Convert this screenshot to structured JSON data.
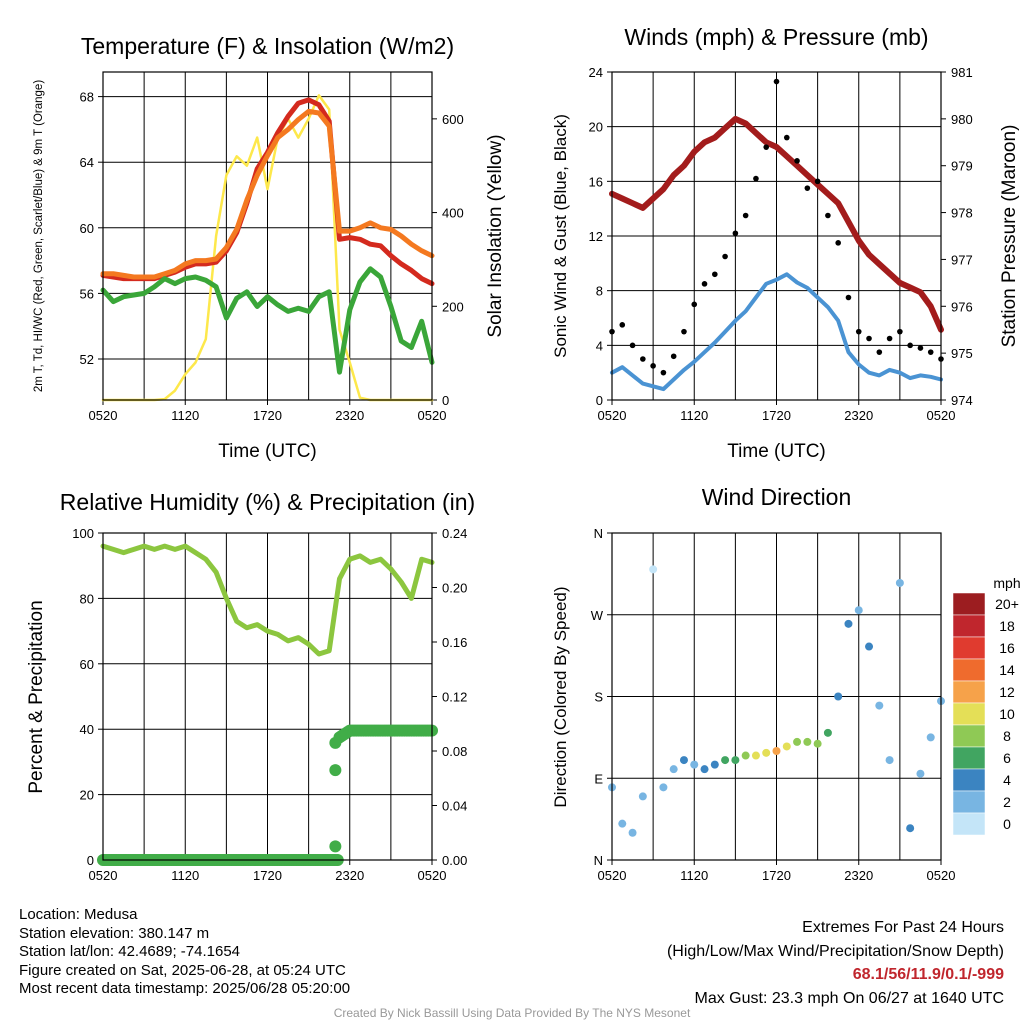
{
  "chart_data": [
    {
      "type": "line",
      "title": "Temperature (F) & Insolation (W/m2)",
      "xlabel": "Time (UTC)",
      "ylabel_left": "2m T, Td, HI/WC (Red, Green, Scarlet/Blue) & 9m T (Orange)",
      "ylabel_right": "Solar Insolation (Yellow)",
      "x_ticks": [
        "0520",
        "1120",
        "1720",
        "2320",
        "0520"
      ],
      "ylim_left": [
        49.5,
        69.5
      ],
      "yticks_left": [
        52,
        56,
        60,
        64,
        68
      ],
      "ylim_right": [
        0,
        700
      ],
      "yticks_right": [
        0,
        200,
        400,
        600
      ],
      "series": [
        {
          "name": "2m T",
          "color": "#d42a1e",
          "axis": "left",
          "values": [
            57.1,
            57.0,
            56.9,
            56.9,
            56.9,
            56.9,
            57.1,
            57.3,
            57.6,
            57.8,
            57.8,
            57.9,
            58.6,
            59.7,
            61.5,
            63.6,
            64.6,
            65.8,
            66.8,
            67.6,
            67.8,
            67.5,
            66.5,
            59.3,
            59.4,
            59.3,
            59.0,
            58.9,
            58.3,
            57.8,
            57.4,
            56.9,
            56.6
          ]
        },
        {
          "name": "9m T",
          "color": "#f47920",
          "axis": "left",
          "values": [
            57.2,
            57.2,
            57.1,
            57.0,
            57.0,
            57.0,
            57.2,
            57.4,
            57.8,
            58.0,
            58.0,
            58.1,
            58.8,
            59.9,
            61.7,
            63.2,
            64.4,
            65.5,
            66.0,
            66.6,
            67.1,
            67.0,
            66.2,
            59.8,
            59.8,
            60.0,
            60.3,
            60.0,
            59.9,
            59.5,
            59.0,
            58.6,
            58.3
          ]
        },
        {
          "name": "2m Td",
          "color": "#3aa639",
          "axis": "left",
          "values": [
            56.2,
            55.5,
            55.8,
            55.9,
            56.0,
            56.4,
            56.9,
            56.6,
            56.9,
            57.0,
            56.8,
            56.4,
            54.5,
            55.7,
            56.1,
            55.2,
            55.8,
            55.3,
            54.9,
            55.1,
            54.9,
            55.8,
            56.1,
            51.2,
            55.0,
            56.7,
            57.5,
            57.0,
            55.2,
            53.1,
            52.7,
            54.3,
            51.8
          ]
        },
        {
          "name": "Solar Insolation",
          "color": "#fde84b",
          "axis": "right",
          "values": [
            0,
            0,
            0,
            0,
            0,
            0,
            2,
            20,
            55,
            80,
            130,
            350,
            480,
            520,
            500,
            560,
            450,
            560,
            600,
            560,
            600,
            650,
            620,
            150,
            80,
            5,
            0,
            0,
            0,
            0,
            0,
            0,
            0
          ]
        }
      ]
    },
    {
      "type": "line",
      "title": "Winds (mph) & Pressure (mb)",
      "xlabel": "Time (UTC)",
      "ylabel_left": "Sonic Wind & Gust (Blue, Black)",
      "ylabel_right": "Station Pressure (Maroon)",
      "x_ticks": [
        "0520",
        "1120",
        "1720",
        "2320",
        "0520"
      ],
      "ylim_left": [
        0,
        24
      ],
      "yticks_left": [
        0,
        4,
        8,
        12,
        16,
        20,
        24
      ],
      "ylim_right": [
        974,
        981
      ],
      "yticks_right": [
        974,
        975,
        976,
        977,
        978,
        979,
        980,
        981
      ],
      "series": [
        {
          "name": "Station Pressure",
          "color": "#a31c1c",
          "axis": "right",
          "values": [
            978.4,
            978.3,
            978.2,
            978.1,
            978.3,
            978.5,
            978.8,
            979.0,
            979.3,
            979.5,
            979.6,
            979.8,
            980.0,
            979.9,
            979.7,
            979.5,
            979.4,
            979.2,
            979.0,
            978.8,
            978.6,
            978.4,
            978.2,
            977.8,
            977.4,
            977.1,
            976.9,
            976.7,
            976.5,
            976.4,
            976.3,
            976.0,
            975.5
          ]
        },
        {
          "name": "Sonic Wind",
          "color": "#4a93d3",
          "axis": "left",
          "values": [
            2.0,
            2.4,
            1.8,
            1.2,
            1.0,
            0.8,
            1.5,
            2.2,
            2.8,
            3.5,
            4.2,
            5.0,
            5.8,
            6.5,
            7.5,
            8.5,
            8.8,
            9.2,
            8.6,
            8.2,
            7.5,
            6.8,
            5.8,
            3.5,
            2.6,
            2.0,
            1.8,
            2.2,
            2.0,
            1.6,
            1.8,
            1.7,
            1.5
          ]
        },
        {
          "name": "Gust",
          "color": "#000000",
          "axis": "left",
          "values": [
            5.0,
            5.5,
            4.0,
            3.0,
            2.5,
            2.0,
            3.2,
            5.0,
            7.0,
            8.5,
            9.2,
            10.5,
            12.2,
            13.5,
            16.2,
            18.5,
            23.3,
            19.2,
            17.5,
            15.5,
            16.0,
            13.5,
            11.5,
            7.5,
            5.0,
            4.5,
            3.5,
            4.5,
            5.0,
            4.0,
            3.8,
            3.5,
            3.0
          ]
        }
      ]
    },
    {
      "type": "line",
      "title": "Relative Humidity (%) & Precipitation (in)",
      "xlabel": "",
      "ylabel_left": "Percent & Precipitation",
      "x_ticks": [
        "0520",
        "1120",
        "1720",
        "2320",
        "0520"
      ],
      "ylim_left": [
        0,
        100
      ],
      "yticks_left": [
        0,
        20,
        40,
        60,
        80,
        100
      ],
      "ylim_right": [
        0,
        0.24
      ],
      "yticks_right": [
        "0.00",
        "0.04",
        "0.08",
        "0.12",
        "0.16",
        "0.20",
        "0.24"
      ],
      "series": [
        {
          "name": "Relative Humidity",
          "color": "#8cc63f",
          "axis": "left",
          "values": [
            96,
            95,
            94,
            95,
            96,
            95,
            96,
            95,
            96,
            94,
            92,
            88,
            80,
            73,
            71,
            72,
            70,
            69,
            67,
            68,
            66,
            63,
            64,
            86,
            92,
            93,
            91,
            92,
            89,
            85,
            80,
            92,
            91
          ]
        },
        {
          "name": "Precipitation",
          "color": "#41ad48",
          "axis": "right",
          "values": [
            0,
            0,
            0,
            0,
            0,
            0,
            0,
            0,
            0,
            0,
            0,
            0,
            0,
            0,
            0,
            0,
            0,
            0,
            0,
            0,
            0,
            0,
            0,
            0.09,
            0.095,
            0.095,
            0.095,
            0.095,
            0.095,
            0.095,
            0.095,
            0.095,
            0.095
          ]
        }
      ]
    },
    {
      "type": "scatter",
      "title": "Wind Direction",
      "ylabel_left": "Direction (Colored By Speed)",
      "x_ticks": [
        "0520",
        "1120",
        "1720",
        "2320",
        "0520"
      ],
      "yticks_left": [
        "N",
        "E",
        "S",
        "W",
        "N"
      ],
      "ylim_left": [
        0,
        360
      ],
      "colorbar": {
        "unit": "mph",
        "labels": [
          "20+",
          "18",
          "16",
          "14",
          "12",
          "10",
          "8",
          "6",
          "4",
          "2",
          "0"
        ],
        "colors": [
          "#9c1d20",
          "#c0262d",
          "#e03b2f",
          "#ef6b2d",
          "#f6a24a",
          "#e4df57",
          "#8fc955",
          "#41a561",
          "#3b84c1",
          "#78b5e2",
          "#c4e5f8"
        ]
      },
      "series": [
        {
          "name": "direction",
          "values": [
            80,
            40,
            30,
            70,
            320,
            80,
            100,
            110,
            105,
            100,
            105,
            110,
            110,
            115,
            115,
            118,
            120,
            125,
            130,
            130,
            128,
            140,
            180,
            260,
            275,
            235,
            170,
            110,
            305,
            35,
            95,
            135,
            175
          ],
          "speed": [
            2,
            1,
            1,
            2,
            0,
            1,
            1,
            3,
            2,
            3,
            4,
            5,
            6,
            7,
            9,
            10,
            11,
            9,
            8,
            8,
            7,
            6,
            4,
            3,
            2,
            3,
            1,
            2,
            1,
            3,
            2,
            2,
            1
          ]
        }
      ]
    }
  ],
  "footer": {
    "location": "Location: Medusa",
    "elevation": "Station elevation: 380.147 m",
    "latlon": "Station lat/lon: 42.4689; -74.1654",
    "created": "Figure created on Sat, 2025-06-28, at 05:24 UTC",
    "recent": "Most recent data timestamp: 2025/06/28 05:20:00",
    "extremes_title": "Extremes For Past 24 Hours",
    "extremes_subtitle": "(High/Low/Max Wind/Precipitation/Snow Depth)",
    "extremes_values": "68.1/56/11.9/0.1/-999",
    "max_gust": "Max Gust: 23.3 mph On 06/27 at 1640 UTC",
    "credit": "Created By Nick Bassill Using Data Provided By The NYS Mesonet"
  }
}
